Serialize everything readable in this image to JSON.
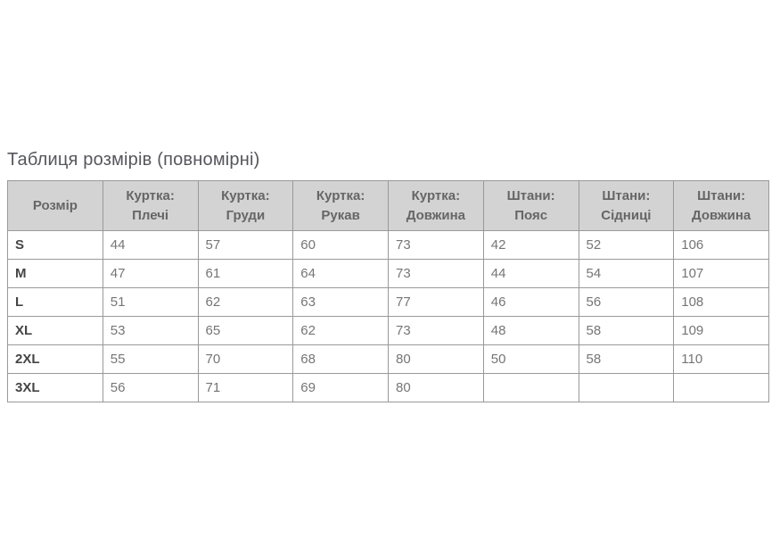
{
  "page": {
    "title": "Таблиця розмірів (повномірні)"
  },
  "size_table": {
    "headers": [
      {
        "line1": "Розмір",
        "line2": ""
      },
      {
        "line1": "Куртка:",
        "line2": "Плечі"
      },
      {
        "line1": "Куртка:",
        "line2": "Груди"
      },
      {
        "line1": "Куртка:",
        "line2": "Рукав"
      },
      {
        "line1": "Куртка:",
        "line2": "Довжина"
      },
      {
        "line1": "Штани:",
        "line2": "Пояс"
      },
      {
        "line1": "Штани:",
        "line2": "Сідниці"
      },
      {
        "line1": "Штани:",
        "line2": "Довжина"
      }
    ],
    "rows": [
      {
        "size": "S",
        "values": [
          "44",
          "57",
          "60",
          "73",
          "42",
          "52",
          "106"
        ]
      },
      {
        "size": "M",
        "values": [
          "47",
          "61",
          "64",
          "73",
          "44",
          "54",
          "107"
        ]
      },
      {
        "size": "L",
        "values": [
          "51",
          "62",
          "63",
          "77",
          "46",
          "56",
          "108"
        ]
      },
      {
        "size": "XL",
        "values": [
          "53",
          "65",
          "62",
          "73",
          "48",
          "58",
          "109"
        ]
      },
      {
        "size": "2XL",
        "values": [
          "55",
          "70",
          "68",
          "80",
          "50",
          "58",
          "110"
        ]
      },
      {
        "size": "3XL",
        "values": [
          "56",
          "71",
          "69",
          "80",
          "",
          "",
          ""
        ]
      }
    ]
  },
  "colors": {
    "title_text": "#55565b",
    "header_bg": "#d3d3d3",
    "header_text": "#666666",
    "border": "#999999",
    "value_text": "#757575",
    "size_label_text": "#454545"
  }
}
